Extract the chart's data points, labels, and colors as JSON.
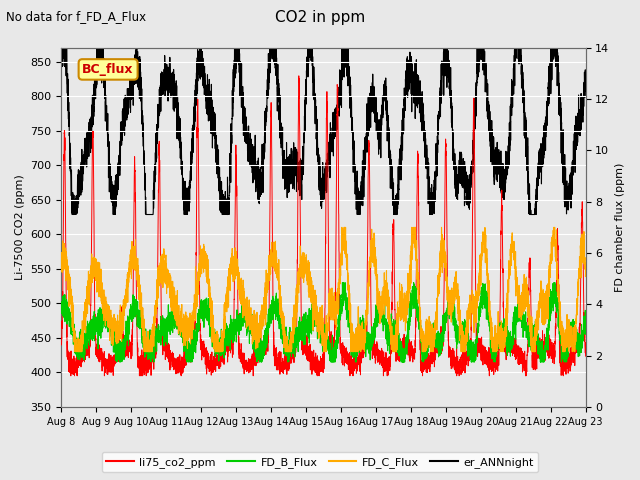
{
  "title": "CO2 in ppm",
  "suptitle": "No data for f_FD_A_Flux",
  "ylabel_left": "Li-7500 CO2 (ppm)",
  "ylabel_right": "FD chamber flux (ppm)",
  "ylim_left": [
    350,
    870
  ],
  "ylim_right": [
    0,
    14
  ],
  "yticks_left": [
    350,
    400,
    450,
    500,
    550,
    600,
    650,
    700,
    750,
    800,
    850
  ],
  "yticks_right": [
    0,
    2,
    4,
    6,
    8,
    10,
    12,
    14
  ],
  "legend_box_label": "BC_flux",
  "legend_labels": [
    "li75_co2_ppm",
    "FD_B_Flux",
    "FD_C_Flux",
    "er_ANNnight"
  ],
  "legend_colors": [
    "#ff0000",
    "#00cc00",
    "#ffaa00",
    "#000000"
  ],
  "line_colors": {
    "li75": "#ff0000",
    "FD_B": "#00cc00",
    "FD_C": "#ffaa00",
    "ANN": "#000000"
  },
  "x_tick_labels": [
    "Aug 8",
    "Aug 9",
    "Aug 10",
    "Aug 11",
    "Aug 12",
    "Aug 13",
    "Aug 14",
    "Aug 15",
    "Aug 16",
    "Aug 17",
    "Aug 18",
    "Aug 19",
    "Aug 20",
    "Aug 21",
    "Aug 22",
    "Aug 23"
  ],
  "background_color": "#e8e8e8",
  "plot_bg_color": "#e8e8e8",
  "fig_width": 6.4,
  "fig_height": 4.8,
  "dpi": 100
}
